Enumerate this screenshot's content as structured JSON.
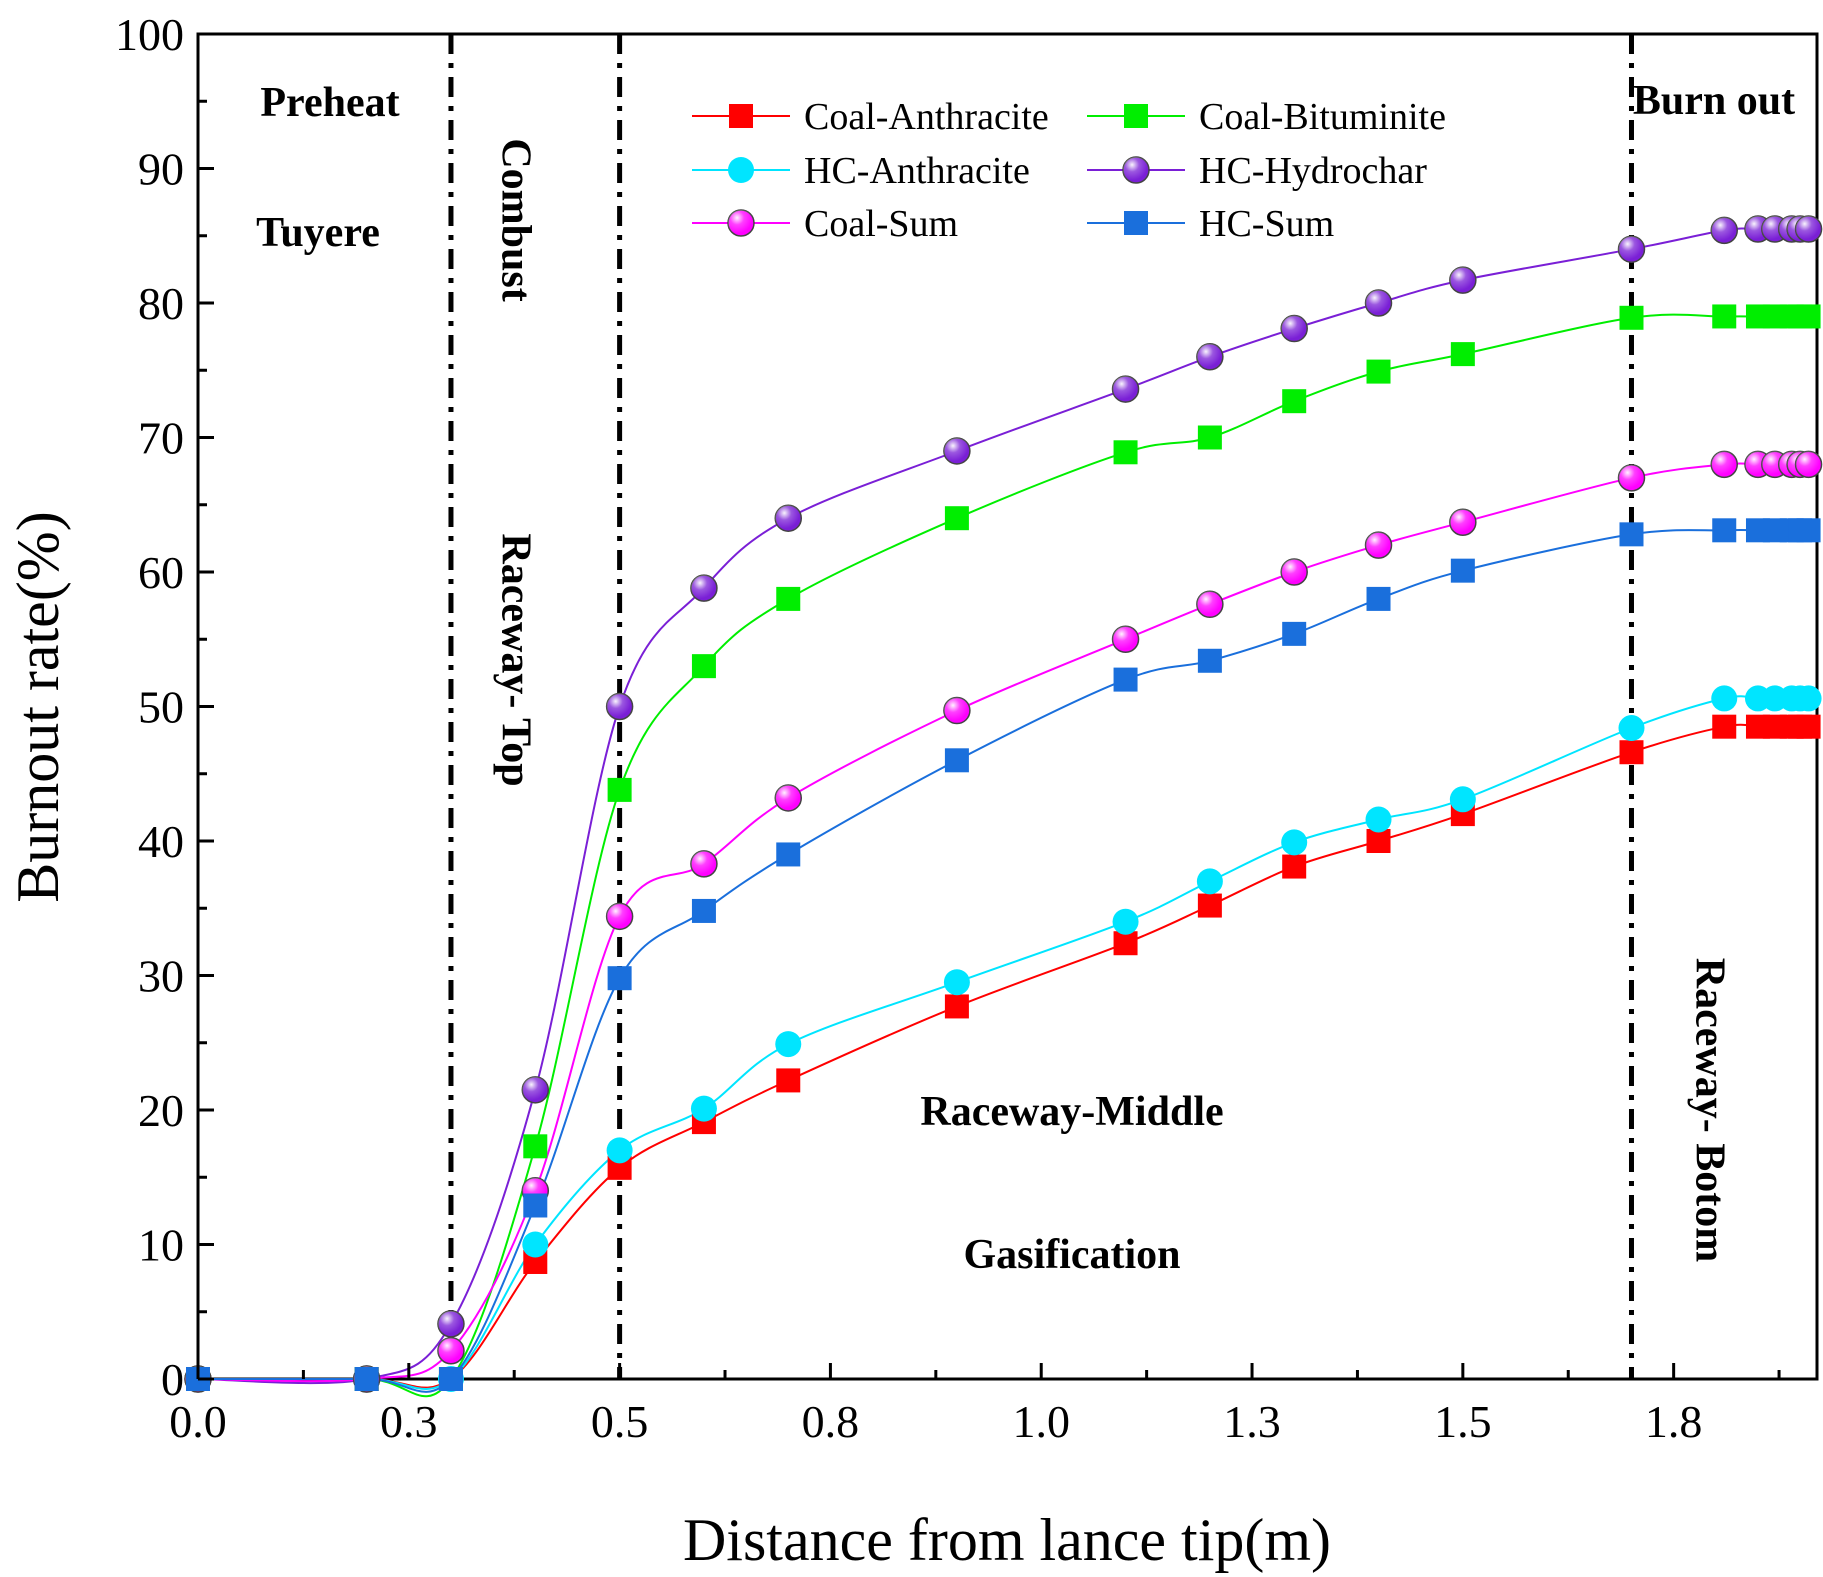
{
  "chart_data": {
    "type": "line",
    "title": "",
    "xlabel": "Distance from lance tip(m)",
    "ylabel": "Burnout rate(%)",
    "xlim": [
      0.0,
      1.92
    ],
    "ylim": [
      0,
      100
    ],
    "x_tick_labels": [
      "0.0",
      "0.3",
      "0.5",
      "0.8",
      "1.0",
      "1.3",
      "1.5",
      "1.8"
    ],
    "x_tick_values": [
      0.0,
      0.25,
      0.5,
      0.75,
      1.0,
      1.25,
      1.5,
      1.75
    ],
    "y_tick_labels": [
      "0",
      "10",
      "20",
      "30",
      "40",
      "50",
      "60",
      "70",
      "80",
      "90",
      "100"
    ],
    "y_tick_values": [
      0,
      10,
      20,
      30,
      40,
      50,
      60,
      70,
      80,
      90,
      100
    ],
    "boundaries": [
      0.3,
      0.5,
      1.7
    ],
    "regions": [
      {
        "label": "Preheat"
      },
      {
        "label": "Tuyere"
      },
      {
        "label": "Combust"
      },
      {
        "label": "Raceway- Top"
      },
      {
        "label": "Burn out"
      },
      {
        "label": "Raceway-Middle"
      },
      {
        "label": "Gasification"
      },
      {
        "label": "Raceway- Botom"
      }
    ],
    "legend_position": "top-center",
    "series": [
      {
        "name": "Coal-Anthracite",
        "color": "#ff0000",
        "marker": "square",
        "x": [
          0.0,
          0.2,
          0.3,
          0.4,
          0.5,
          0.6,
          0.7,
          0.9,
          1.1,
          1.2,
          1.3,
          1.4,
          1.5,
          1.7,
          1.81,
          1.85,
          1.87,
          1.89,
          1.9,
          1.91
        ],
        "y": [
          0,
          0,
          0,
          8.7,
          15.7,
          19.1,
          22.2,
          27.7,
          32.4,
          35.2,
          38.1,
          40.0,
          42.0,
          46.6,
          48.5,
          48.5,
          48.5,
          48.5,
          48.5,
          48.5
        ]
      },
      {
        "name": "Coal-Bituminite",
        "color": "#00ee00",
        "marker": "square",
        "x": [
          0.0,
          0.2,
          0.3,
          0.4,
          0.5,
          0.6,
          0.7,
          0.9,
          1.1,
          1.2,
          1.3,
          1.4,
          1.5,
          1.7,
          1.81,
          1.85,
          1.87,
          1.89,
          1.9,
          1.91
        ],
        "y": [
          0,
          0,
          0,
          17.3,
          43.8,
          53.0,
          58.0,
          64.0,
          68.9,
          70.0,
          72.7,
          74.9,
          76.2,
          78.9,
          79.0,
          79.0,
          79.0,
          79.0,
          79.0,
          79.0
        ]
      },
      {
        "name": "HC-Anthracite",
        "color": "#00e5ff",
        "marker": "circle",
        "x": [
          0.0,
          0.2,
          0.3,
          0.4,
          0.5,
          0.6,
          0.7,
          0.9,
          1.1,
          1.2,
          1.3,
          1.4,
          1.5,
          1.7,
          1.81,
          1.85,
          1.87,
          1.89,
          1.9,
          1.91
        ],
        "y": [
          0,
          0,
          0,
          10.0,
          17.0,
          20.1,
          24.9,
          29.5,
          34.0,
          37.0,
          39.9,
          41.6,
          43.1,
          48.4,
          50.6,
          50.6,
          50.6,
          50.6,
          50.6,
          50.6
        ]
      },
      {
        "name": "HC-Hydrochar",
        "color": "#7a1fd6",
        "marker": "sphere",
        "x": [
          0.0,
          0.2,
          0.3,
          0.4,
          0.5,
          0.6,
          0.7,
          0.9,
          1.1,
          1.2,
          1.3,
          1.4,
          1.5,
          1.7,
          1.81,
          1.85,
          1.87,
          1.89,
          1.9,
          1.91
        ],
        "y": [
          0,
          0,
          4.1,
          21.5,
          50.0,
          58.8,
          64.0,
          69.0,
          73.6,
          76.0,
          78.1,
          80.0,
          81.7,
          84.0,
          85.4,
          85.5,
          85.5,
          85.5,
          85.5,
          85.5
        ]
      },
      {
        "name": "Coal-Sum",
        "color": "#ff00ff",
        "marker": "sphere",
        "x": [
          0.0,
          0.2,
          0.3,
          0.4,
          0.5,
          0.6,
          0.7,
          0.9,
          1.1,
          1.2,
          1.3,
          1.4,
          1.5,
          1.7,
          1.81,
          1.85,
          1.87,
          1.89,
          1.9,
          1.91
        ],
        "y": [
          0,
          0,
          2.1,
          14.0,
          34.4,
          38.3,
          43.2,
          49.7,
          55.0,
          57.6,
          60.0,
          62.0,
          63.7,
          67.0,
          68.0,
          68.0,
          68.0,
          68.0,
          68.0,
          68.0
        ]
      },
      {
        "name": "HC-Sum",
        "color": "#1a6fdc",
        "marker": "square",
        "x": [
          0.0,
          0.2,
          0.3,
          0.4,
          0.5,
          0.6,
          0.7,
          0.9,
          1.1,
          1.2,
          1.3,
          1.4,
          1.5,
          1.7,
          1.81,
          1.85,
          1.87,
          1.89,
          1.9,
          1.91
        ],
        "y": [
          0,
          0,
          0,
          12.9,
          29.8,
          34.8,
          39.0,
          46.0,
          52.0,
          53.4,
          55.4,
          58.0,
          60.1,
          62.8,
          63.1,
          63.1,
          63.1,
          63.1,
          63.1,
          63.1
        ]
      }
    ]
  }
}
